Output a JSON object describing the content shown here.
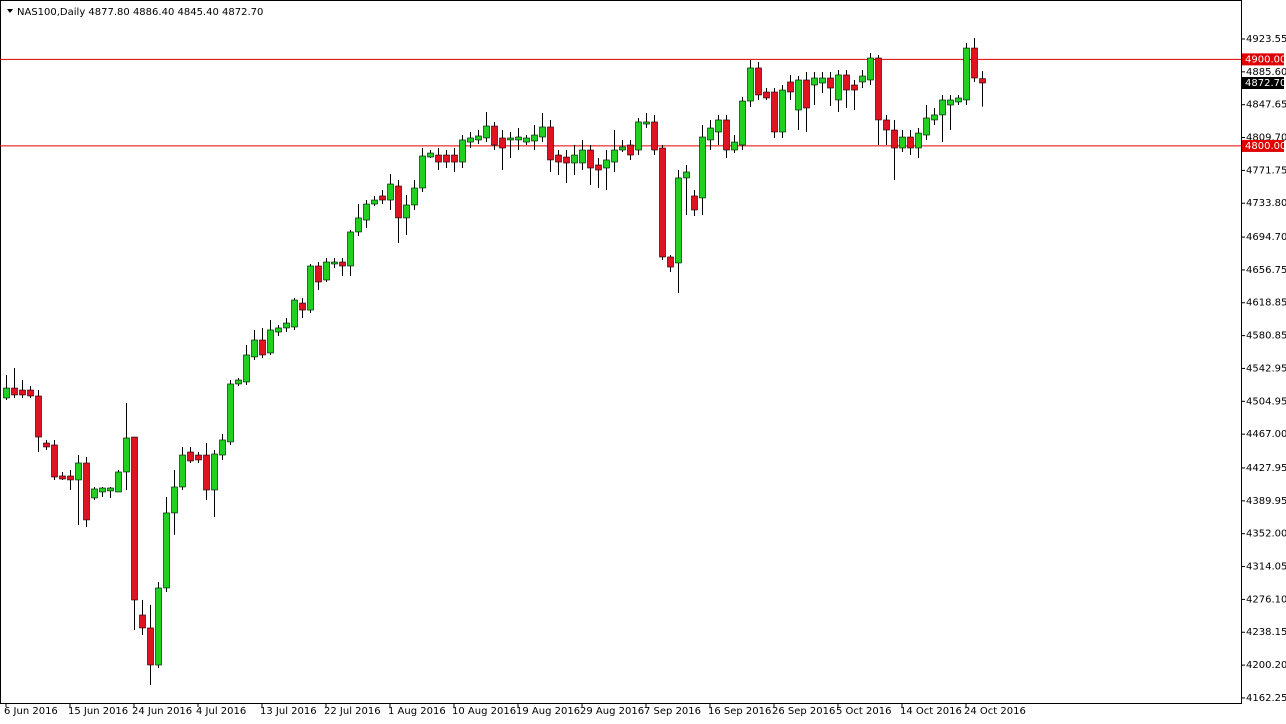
{
  "chart_data": {
    "type": "candlestick",
    "title": "NAS100,Daily  4877.80 4886.40 4845.40 4872.70",
    "up_color": "#22d022",
    "down_color": "#e0141e",
    "categories": [
      "6 Jun 2016",
      null,
      null,
      null,
      null,
      null,
      null,
      null,
      "15 Jun 2016",
      null,
      null,
      null,
      null,
      null,
      null,
      null,
      "24 Jun 2016",
      null,
      null,
      null,
      null,
      null,
      null,
      null,
      "4 Jul 2016",
      null,
      null,
      null,
      null,
      null,
      null,
      null,
      "13 Jul 2016",
      null,
      null,
      null,
      null,
      null,
      null,
      null,
      "22 Jul 2016",
      null,
      null,
      null,
      null,
      null,
      null,
      null,
      "1 Aug 2016",
      null,
      null,
      null,
      null,
      null,
      null,
      null,
      "10 Aug 2016",
      null,
      null,
      null,
      null,
      null,
      null,
      null,
      "19 Aug 2016",
      null,
      null,
      null,
      null,
      null,
      null,
      null,
      "29 Aug 2016",
      null,
      null,
      null,
      null,
      null,
      null,
      null,
      "7 Sep 2016",
      null,
      null,
      null,
      null,
      null,
      null,
      null,
      "16 Sep 2016",
      null,
      null,
      null,
      null,
      null,
      null,
      null,
      "26 Sep 2016",
      null,
      null,
      null,
      null,
      null,
      null,
      null,
      "5 Oct 2016",
      null,
      null,
      null,
      null,
      null,
      null,
      null,
      "14 Oct 2016",
      null,
      null,
      null,
      null,
      null,
      null,
      null,
      "24 Oct 2016",
      null,
      null
    ],
    "open": [
      4508.8,
      4520.3,
      4518.0,
      4518.0,
      4511.1,
      4456.8,
      4454.5,
      4418.7,
      4418.7,
      4414.1,
      4433.7,
      4393.3,
      4400.2,
      4401.4,
      4400.2,
      4423.3,
      4463.7,
      4258.1,
      4243.1,
      4200.3,
      4289.3,
      4376.0,
      4406.0,
      4446.4,
      4442.9,
      4442.9,
      4402.5,
      4442.9,
      4458.0,
      4525.0,
      4527.3,
      4556.2,
      4575.8,
      4560.8,
      4585.0,
      4589.7,
      4590.8,
      4618.5,
      4610.4,
      4661.3,
      4645.1,
      4663.6,
      4665.9,
      4661.3,
      4700.6,
      4714.4,
      4732.9,
      4742.2,
      4737.5,
      4753.7,
      4716.8,
      4731.8,
      4751.4,
      4787.2,
      4789.5,
      4789.5,
      4789.5,
      4781.4,
      4804.5,
      4806.9,
      4809.2,
      4823.0,
      4809.2,
      4806.9,
      4806.9,
      4804.5,
      4805.7,
      4810.3,
      4821.9,
      4789.5,
      4787.2,
      4780.3,
      4780.3,
      4795.3,
      4778.0,
      4774.5,
      4781.4,
      4795.3,
      4801.1,
      4795.3,
      4825.3,
      4827.7,
      4797.6,
      4671.7,
      4664.8,
      4763.0,
      4742.2,
      4739.9,
      4806.9,
      4816.1,
      4830.0,
      4795.3,
      4801.1,
      4851.9,
      4890.1,
      4862.3,
      4862.3,
      4816.1,
      4873.9,
      4841.5,
      4876.2,
      4870.4,
      4872.7,
      4878.5,
      4853.1,
      4882.0,
      4870.4,
      4873.9,
      4876.2,
      4901.6,
      4830.0,
      4818.4,
      4797.6,
      4810.3,
      4797.6,
      4812.6,
      4830.0,
      4835.8,
      4847.3,
      4850.8,
      4853.1,
      4913.1,
      4877.8
    ],
    "high": [
      4535.4,
      4543.5,
      4529.6,
      4522.7,
      4518.0,
      4460.3,
      4460.3,
      4423.3,
      4425.6,
      4442.9,
      4440.6,
      4406.0,
      4406.0,
      4406.0,
      4425.6,
      4503.0,
      4463.7,
      4275.4,
      4269.7,
      4296.2,
      4394.4,
      4425.6,
      4452.2,
      4452.2,
      4446.4,
      4456.8,
      4448.7,
      4467.2,
      4529.6,
      4531.9,
      4570.0,
      4587.4,
      4589.7,
      4598.9,
      4593.1,
      4601.2,
      4624.3,
      4624.3,
      4663.6,
      4665.9,
      4670.5,
      4670.5,
      4670.5,
      4702.9,
      4732.9,
      4737.5,
      4742.2,
      4749.1,
      4767.6,
      4760.7,
      4743.3,
      4760.7,
      4797.6,
      4795.3,
      4797.6,
      4795.3,
      4797.6,
      4812.6,
      4816.1,
      4818.4,
      4839.2,
      4827.7,
      4818.4,
      4816.1,
      4820.7,
      4812.6,
      4824.2,
      4838.1,
      4830.0,
      4795.3,
      4795.3,
      4801.1,
      4806.9,
      4801.1,
      4786.1,
      4795.3,
      4818.4,
      4806.9,
      4806.9,
      4832.3,
      4838.1,
      4835.8,
      4801.1,
      4674.0,
      4772.2,
      4778.0,
      4749.1,
      4824.2,
      4830.0,
      4835.8,
      4835.8,
      4812.6,
      4856.5,
      4899.3,
      4897.0,
      4866.9,
      4866.9,
      4870.4,
      4882.0,
      4880.8,
      4885.4,
      4885.4,
      4885.4,
      4885.4,
      4887.7,
      4887.7,
      4876.2,
      4887.7,
      4907.4,
      4905.1,
      4835.8,
      4830.0,
      4818.4,
      4818.4,
      4820.7,
      4847.3,
      4843.8,
      4858.9,
      4858.9,
      4858.9,
      4918.9,
      4924.7,
      4886.4
    ],
    "low": [
      4506.5,
      4508.8,
      4508.8,
      4508.8,
      4446.4,
      4448.7,
      4414.1,
      4414.1,
      4402.5,
      4362.1,
      4359.8,
      4391.0,
      4394.4,
      4393.3,
      4400.2,
      4402.5,
      4240.8,
      4235.0,
      4177.2,
      4196.9,
      4284.7,
      4350.6,
      4402.5,
      4433.7,
      4433.7,
      4391.0,
      4371.3,
      4437.2,
      4454.5,
      4522.7,
      4523.8,
      4552.7,
      4555.0,
      4558.5,
      4580.4,
      4585.0,
      4587.4,
      4601.2,
      4607.0,
      4633.6,
      4642.8,
      4659.0,
      4649.7,
      4649.7,
      4696.0,
      4705.2,
      4730.6,
      4732.9,
      4726.0,
      4687.9,
      4697.1,
      4726.0,
      4746.8,
      4786.1,
      4772.2,
      4774.5,
      4769.9,
      4774.5,
      4797.6,
      4802.2,
      4804.5,
      4795.3,
      4772.2,
      4786.1,
      4795.3,
      4801.1,
      4795.3,
      4804.5,
      4769.9,
      4766.4,
      4757.2,
      4766.4,
      4772.2,
      4754.9,
      4751.4,
      4749.1,
      4769.9,
      4793.0,
      4783.8,
      4789.5,
      4820.7,
      4789.5,
      4668.2,
      4654.4,
      4630.1,
      4720.2,
      4719.1,
      4720.2,
      4795.3,
      4801.1,
      4786.1,
      4791.8,
      4795.3,
      4845.0,
      4853.1,
      4853.1,
      4809.2,
      4809.2,
      4853.1,
      4818.4,
      4816.1,
      4847.3,
      4861.2,
      4846.1,
      4839.2,
      4843.8,
      4841.5,
      4866.9,
      4870.4,
      4801.1,
      4801.1,
      4760.7,
      4793.0,
      4789.5,
      4786.1,
      4806.9,
      4824.2,
      4804.5,
      4818.4,
      4847.3,
      4847.3,
      4873.9,
      4845.4
    ],
    "close": [
      4520.3,
      4512.3,
      4512.3,
      4511.1,
      4463.7,
      4452.2,
      4417.5,
      4415.2,
      4414.1,
      4433.7,
      4367.9,
      4403.7,
      4404.8,
      4404.8,
      4423.3,
      4462.6,
      4275.4,
      4243.1,
      4200.3,
      4289.3,
      4376.0,
      4406.0,
      4442.9,
      4436.0,
      4437.2,
      4402.5,
      4444.1,
      4460.3,
      4525.0,
      4529.6,
      4558.5,
      4575.8,
      4558.5,
      4587.4,
      4589.7,
      4595.4,
      4622.0,
      4610.4,
      4661.3,
      4642.8,
      4665.9,
      4665.9,
      4661.3,
      4700.6,
      4716.8,
      4732.9,
      4737.5,
      4737.5,
      4756.0,
      4716.8,
      4731.8,
      4751.4,
      4788.4,
      4791.8,
      4781.4,
      4781.4,
      4781.4,
      4806.9,
      4809.2,
      4811.5,
      4823.0,
      4801.1,
      4797.6,
      4809.2,
      4810.3,
      4809.2,
      4812.6,
      4821.9,
      4783.8,
      4781.4,
      4780.3,
      4789.5,
      4795.3,
      4774.5,
      4772.2,
      4783.8,
      4795.3,
      4798.8,
      4789.5,
      4827.7,
      4827.7,
      4795.3,
      4671.7,
      4660.1,
      4763.0,
      4769.9,
      4726.0,
      4810.3,
      4820.7,
      4830.0,
      4795.3,
      4804.5,
      4851.9,
      4890.1,
      4858.9,
      4855.4,
      4816.1,
      4864.6,
      4862.3,
      4876.2,
      4843.8,
      4878.5,
      4878.5,
      4866.9,
      4882.0,
      4864.6,
      4864.6,
      4880.8,
      4901.6,
      4830.0,
      4818.4,
      4797.6,
      4810.3,
      4797.6,
      4814.9,
      4832.3,
      4835.8,
      4853.1,
      4853.1,
      4855.4,
      4913.1,
      4878.5,
      4872.7
    ],
    "ylim": [
      4156.4,
      4968.6
    ],
    "yticks": [
      4923.55,
      {
        "value": 4885.6,
        "label": "4885.60"
      },
      4847.65,
      {
        "value": 4809.7,
        "label": "4809.70"
      },
      4771.75,
      {
        "value": 4733.8,
        "label": "4733.80"
      },
      {
        "value": 4694.7,
        "label": "4694.70"
      },
      4656.75,
      4618.85,
      4580.85,
      4542.95,
      4504.95,
      {
        "value": 4467,
        "label": "4467.00"
      },
      4427.95,
      4389.95,
      {
        "value": 4352,
        "label": "4352.00"
      },
      4314.05,
      {
        "value": 4276.1,
        "label": "4276.10"
      },
      4238.15,
      {
        "value": 4200.2,
        "label": "4200.20"
      },
      4162.25
    ],
    "hlines": [
      {
        "value": 4900,
        "label": "4900.00",
        "color": "#e00000"
      },
      {
        "value": 4800,
        "label": "4800.00",
        "color": "#e00000"
      }
    ],
    "current_price": {
      "value": 4872.7,
      "label": "4872.70"
    }
  }
}
